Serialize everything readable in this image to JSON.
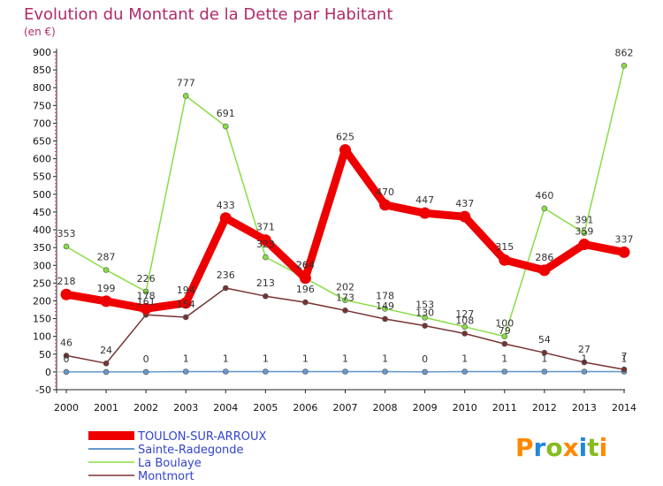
{
  "chart_data": {
    "type": "line",
    "title": "Evolution du Montant de la Dette par Habitant",
    "subtitle": "(en €)",
    "x": [
      "2000",
      "2001",
      "2002",
      "2003",
      "2004",
      "2005",
      "2006",
      "2007",
      "2008",
      "2009",
      "2010",
      "2011",
      "2012",
      "2013",
      "2014"
    ],
    "ylim": [
      -50,
      900
    ],
    "yticks": [
      -50,
      0,
      50,
      100,
      150,
      200,
      250,
      300,
      350,
      400,
      450,
      500,
      550,
      600,
      650,
      700,
      750,
      800,
      850,
      900
    ],
    "grid": false,
    "legend_position": "bottom-left",
    "series": [
      {
        "name": "TOULON-SUR-ARROUX",
        "color": "#ee0000",
        "values": [
          218,
          199,
          178,
          194,
          433,
          371,
          264,
          625,
          470,
          447,
          437,
          315,
          286,
          359,
          337
        ]
      },
      {
        "name": "Sainte-Radegonde",
        "color": "#6699cc",
        "values": [
          0,
          0,
          0,
          1,
          1,
          1,
          1,
          1,
          1,
          0,
          1,
          1,
          1,
          1,
          1
        ]
      },
      {
        "name": "La Boulaye",
        "color": "#88dd44",
        "values": [
          353,
          287,
          226,
          777,
          691,
          323,
          264,
          202,
          178,
          153,
          127,
          100,
          460,
          391,
          862
        ]
      },
      {
        "name": "Montmort",
        "color": "#773333",
        "values": [
          46,
          24,
          161,
          154,
          236,
          213,
          196,
          173,
          149,
          130,
          108,
          79,
          54,
          27,
          7
        ]
      }
    ],
    "data_labels": [
      {
        "series": 0,
        "labels": [
          "218",
          "199",
          "178",
          "194",
          "433",
          "371",
          "264",
          "625",
          "470",
          "447",
          "437",
          "315",
          "286",
          "359",
          "337"
        ]
      },
      {
        "series": 1,
        "labels": [
          "0",
          "",
          "0",
          "1",
          "1",
          "1",
          "1",
          "1",
          "1",
          "0",
          "1",
          "1",
          "1",
          "1",
          "1"
        ]
      },
      {
        "series": 2,
        "labels": [
          "353",
          "287",
          "226",
          "777",
          "691",
          "323",
          "264",
          "202",
          "178",
          "153",
          "127",
          "100",
          "460",
          "391",
          "862"
        ]
      },
      {
        "series": 3,
        "labels": [
          "46",
          "24",
          "161",
          "154",
          "236",
          "213",
          "196",
          "173",
          "149",
          "130",
          "108",
          "79",
          "54",
          "27",
          "7"
        ]
      }
    ]
  },
  "logo": {
    "text": "Proxiti"
  }
}
